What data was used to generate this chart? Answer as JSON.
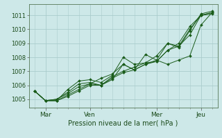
{
  "background_color": "#cde8e8",
  "grid_color": "#aacccc",
  "line_color": "#1a5c1a",
  "xlabel": "Pression niveau de la mer( hPa )",
  "ylim": [
    1004.4,
    1011.8
  ],
  "xlim": [
    -0.5,
    16.5
  ],
  "yticks": [
    1005,
    1006,
    1007,
    1008,
    1009,
    1010,
    1011
  ],
  "day_positions": [
    1.0,
    5.0,
    11.0,
    15.0
  ],
  "day_labels": [
    "Mar",
    "Ven",
    "Mer",
    "Jeu"
  ],
  "minor_xticks": [
    0,
    1,
    2,
    3,
    4,
    5,
    6,
    7,
    8,
    9,
    10,
    11,
    12,
    13,
    14,
    15,
    16
  ],
  "series": [
    {
      "x": [
        0,
        1,
        2,
        3,
        4,
        5,
        6,
        7,
        8,
        9,
        10,
        11,
        12,
        13,
        14,
        15,
        16
      ],
      "y": [
        1005.6,
        1004.9,
        1004.9,
        1005.3,
        1005.7,
        1006.1,
        1006.0,
        1006.5,
        1006.9,
        1007.1,
        1007.5,
        1007.7,
        1008.5,
        1009.0,
        1010.2,
        1011.0,
        1011.2
      ]
    },
    {
      "x": [
        0,
        1,
        2,
        3,
        4,
        5,
        6,
        7,
        8,
        9,
        10,
        11,
        12,
        13,
        14,
        15,
        16
      ],
      "y": [
        1005.6,
        1004.9,
        1004.9,
        1005.2,
        1005.6,
        1006.0,
        1006.0,
        1006.6,
        1007.0,
        1007.3,
        1007.6,
        1008.1,
        1009.0,
        1008.8,
        1010.0,
        1011.0,
        1011.1
      ]
    },
    {
      "x": [
        0,
        1,
        2,
        3,
        4,
        5,
        6,
        7,
        8,
        9,
        10,
        11,
        12,
        13,
        14,
        15,
        16
      ],
      "y": [
        1005.6,
        1004.9,
        1005.0,
        1005.5,
        1006.1,
        1006.2,
        1006.0,
        1006.4,
        1007.5,
        1007.1,
        1007.5,
        1007.8,
        1009.0,
        1008.7,
        1009.9,
        1011.1,
        1011.3
      ]
    },
    {
      "x": [
        0,
        1,
        2,
        3,
        4,
        5,
        6,
        7,
        8,
        9,
        10,
        11,
        12,
        13,
        14,
        15,
        16
      ],
      "y": [
        1005.6,
        1004.9,
        1004.9,
        1005.7,
        1006.3,
        1006.4,
        1006.2,
        1006.7,
        1008.0,
        1007.5,
        1007.6,
        1007.7,
        1008.5,
        1008.8,
        1009.6,
        1011.0,
        1011.2
      ]
    },
    {
      "x": [
        0,
        1,
        2,
        3,
        4,
        5,
        6,
        7,
        8,
        9,
        10,
        11,
        12,
        13,
        14,
        15,
        16
      ],
      "y": [
        1005.6,
        1004.9,
        1005.0,
        1005.4,
        1005.9,
        1006.1,
        1006.5,
        1006.8,
        1007.5,
        1007.1,
        1008.2,
        1007.8,
        1007.5,
        1007.8,
        1008.1,
        1010.3,
        1011.2
      ]
    }
  ],
  "figsize": [
    3.2,
    2.0
  ],
  "dpi": 100
}
